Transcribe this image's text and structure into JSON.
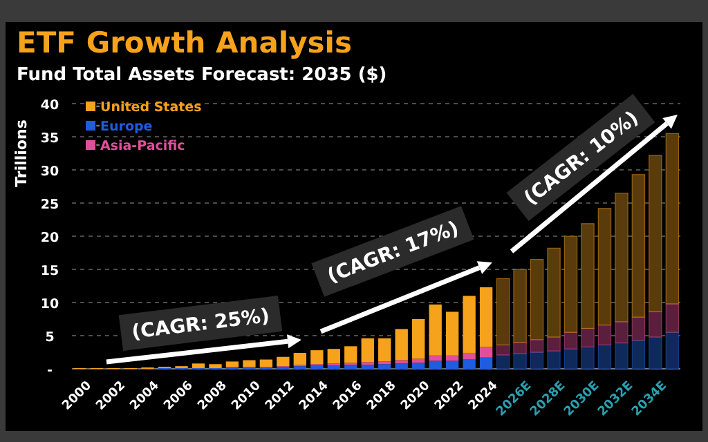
{
  "chart_data": {
    "type": "bar",
    "title": "ETF Growth Analysis",
    "subtitle": "Fund Total Assets Forecast: 2035 ($)",
    "ylabel": "Trillions",
    "categories": [
      "2000",
      null,
      "2002",
      null,
      "2004",
      null,
      "2006",
      null,
      "2008",
      null,
      "2010",
      null,
      "2012",
      null,
      "2014",
      null,
      "2016",
      null,
      "2018",
      null,
      "2020",
      null,
      "2022",
      null,
      "2024",
      null,
      "2026E",
      null,
      "2028E",
      null,
      "2030E",
      null,
      "2032E",
      null,
      "2034E",
      null
    ],
    "stacked": true,
    "ylim": [
      0,
      40
    ],
    "yticks": [
      {
        "value": 0,
        "label": "-"
      },
      5,
      10,
      15,
      20,
      25,
      30,
      35,
      40
    ],
    "grid": "y",
    "legend": "top left",
    "series": [
      {
        "name": "Europe",
        "color": "#1f5ce0",
        "colors": [
          "#1f5ce0",
          "#1f5ce0",
          "#1f5ce0",
          "#1f5ce0",
          "#1f5ce0",
          "#1f5ce0",
          "#1f5ce0",
          "#1f5ce0",
          "#1f5ce0",
          "#1f5ce0",
          "#1f5ce0",
          "#1f5ce0",
          "#1f5ce0",
          "#1f5ce0",
          "#1f5ce0",
          "#1f5ce0",
          "#1f5ce0",
          "#1f5ce0",
          "#1f5ce0",
          "#1f5ce0",
          "#1f5ce0",
          "#1f5ce0",
          "#1f5ce0",
          "#1f5ce0",
          "#1f5ce0",
          "#0f2a5a",
          "#0f2a5a",
          "#0f2a5a",
          "#0f2a5a",
          "#0f2a5a",
          "#0f2a5a",
          "#0f2a5a",
          "#0f2a5a",
          "#0f2a5a",
          "#0f2a5a",
          "#0f2a5a"
        ],
        "values": [
          0,
          0,
          0,
          0,
          0,
          0.1,
          0.1,
          0.1,
          0.1,
          0.2,
          0.2,
          0.2,
          0.3,
          0.4,
          0.5,
          0.5,
          0.6,
          0.6,
          0.7,
          0.8,
          0.9,
          1.2,
          1.2,
          1.4,
          1.7,
          2.1,
          2.3,
          2.5,
          2.7,
          3.0,
          3.3,
          3.6,
          3.9,
          4.3,
          4.8,
          5.5
        ]
      },
      {
        "name": "Asia-Pacific",
        "color": "#e0509a",
        "colors": [
          "#e0509a",
          "#e0509a",
          "#e0509a",
          "#e0509a",
          "#e0509a",
          "#e0509a",
          "#e0509a",
          "#e0509a",
          "#e0509a",
          "#e0509a",
          "#e0509a",
          "#e0509a",
          "#e0509a",
          "#e0509a",
          "#e0509a",
          "#e0509a",
          "#e0509a",
          "#e0509a",
          "#e0509a",
          "#e0509a",
          "#e0509a",
          "#e0509a",
          "#e0509a",
          "#e0509a",
          "#e0509a",
          "#5a1f3c",
          "#5a1f3c",
          "#5a1f3c",
          "#5a1f3c",
          "#5a1f3c",
          "#5a1f3c",
          "#5a1f3c",
          "#5a1f3c",
          "#5a1f3c",
          "#5a1f3c",
          "#5a1f3c"
        ],
        "values": [
          0,
          0,
          0,
          0,
          0,
          0,
          0,
          0,
          0,
          0.1,
          0.1,
          0.1,
          0.1,
          0.2,
          0.2,
          0.3,
          0.3,
          0.4,
          0.4,
          0.5,
          0.6,
          0.8,
          0.8,
          1.0,
          1.6,
          1.5,
          1.7,
          1.9,
          2.1,
          2.5,
          2.8,
          3.0,
          3.2,
          3.5,
          3.8,
          4.3
        ]
      },
      {
        "name": "United States",
        "color": "#f7a21b",
        "colors": [
          "#f7a21b",
          "#f7a21b",
          "#f7a21b",
          "#f7a21b",
          "#f7a21b",
          "#f7a21b",
          "#f7a21b",
          "#f7a21b",
          "#f7a21b",
          "#f7a21b",
          "#f7a21b",
          "#f7a21b",
          "#f7a21b",
          "#f7a21b",
          "#f7a21b",
          "#f7a21b",
          "#f7a21b",
          "#f7a21b",
          "#f7a21b",
          "#f7a21b",
          "#f7a21b",
          "#f7a21b",
          "#f7a21b",
          "#f7a21b",
          "#f7a21b",
          "#5a3c0c",
          "#5a3c0c",
          "#5a3c0c",
          "#5a3c0c",
          "#5a3c0c",
          "#5a3c0c",
          "#5a3c0c",
          "#5a3c0c",
          "#5a3c0c",
          "#5a3c0c",
          "#5a3c0c"
        ],
        "values": [
          0.1,
          0.1,
          0.1,
          0.1,
          0.2,
          0.2,
          0.3,
          0.7,
          0.6,
          0.8,
          1.0,
          1.1,
          1.4,
          1.8,
          2.1,
          2.2,
          2.5,
          3.6,
          3.5,
          4.7,
          6.0,
          7.7,
          6.6,
          8.6,
          9.0,
          10.0,
          11.0,
          12.1,
          13.4,
          14.5,
          15.8,
          17.6,
          19.4,
          21.5,
          23.6,
          25.7
        ]
      }
    ],
    "annotations": [
      "(CAGR: 25%)",
      "(CAGR: 17%)",
      "(CAGR: 10%)"
    ]
  }
}
